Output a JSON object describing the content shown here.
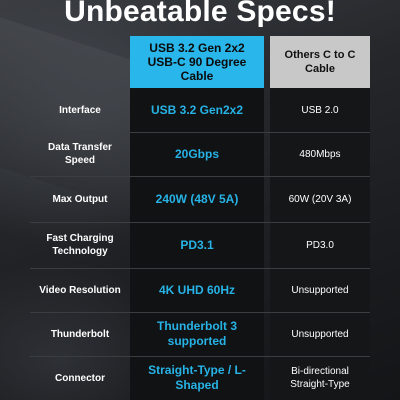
{
  "title": "Unbeatable Specs!",
  "header": {
    "featured": "USB 3.2 Gen 2x2 USB-C 90 Degree Cable",
    "others": "Others C to C  Cable"
  },
  "rows": [
    {
      "label": "Interface",
      "featured": "USB 3.2 Gen2x2",
      "others": "USB 2.0"
    },
    {
      "label": "Data Transfer Speed",
      "featured": "20Gbps",
      "others": "480Mbps"
    },
    {
      "label": "Max Output",
      "featured": "240W (48V 5A)",
      "others": "60W (20V 3A)"
    },
    {
      "label": "Fast Charging Technology",
      "featured": "PD3.1",
      "others": "PD3.0"
    },
    {
      "label": "Video Resolution",
      "featured": "4K UHD 60Hz",
      "others": "Unsupported"
    },
    {
      "label": "Thunderbolt",
      "featured": "Thunderbolt 3 supported",
      "others": "Unsupported"
    },
    {
      "label": "Connector",
      "featured": "Straight-Type / L-Shaped",
      "others": "Bi-directional Straight-Type"
    }
  ],
  "colors": {
    "accent": "#27b3e6",
    "header_featured_bg": "#29b6ea",
    "header_others_bg": "#c8c8c8"
  }
}
